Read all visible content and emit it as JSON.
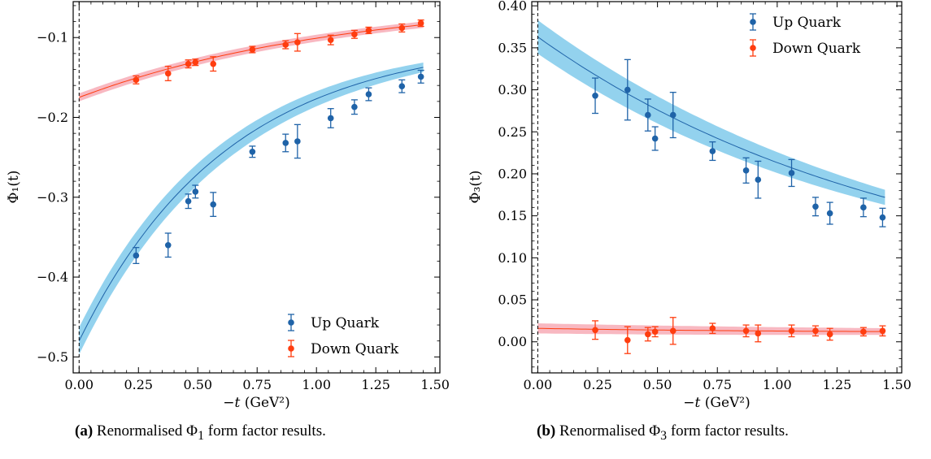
{
  "colors": {
    "up": "#1f63a8",
    "up_band": "#87cdec",
    "down": "#ff3d0f",
    "down_band": "#f7b0ba"
  },
  "chart_data": [
    {
      "type": "scatter",
      "xlabel_var": "−t",
      "xlabel_unit": "(GeV²)",
      "ylabel_sym": "Φ₁(t)",
      "xlim": [
        -0.025,
        1.52
      ],
      "ylim": [
        -0.52,
        -0.055
      ],
      "xticks": [
        0.0,
        0.25,
        0.5,
        0.75,
        1.0,
        1.25,
        1.5
      ],
      "xtick_labels": [
        "0.00",
        "0.25",
        "0.50",
        "0.75",
        "1.00",
        "1.25",
        "1.50"
      ],
      "yticks": [
        -0.1,
        -0.2,
        -0.3,
        -0.4,
        -0.5
      ],
      "ytick_labels": [
        "−0.1",
        "−0.2",
        "−0.3",
        "−0.4",
        "−0.5"
      ],
      "vline_x": 0,
      "legend_position": "lower right",
      "series": [
        {
          "name": "Up Quark",
          "color_key": "up",
          "x": [
            0.24,
            0.375,
            0.46,
            0.49,
            0.565,
            0.73,
            0.87,
            0.92,
            1.06,
            1.16,
            1.22,
            1.36,
            1.44
          ],
          "y": [
            -0.373,
            -0.36,
            -0.305,
            -0.293,
            -0.309,
            -0.243,
            -0.232,
            -0.23,
            -0.201,
            -0.187,
            -0.171,
            -0.161,
            -0.149
          ],
          "yerr": [
            0.01,
            0.015,
            0.009,
            0.008,
            0.015,
            0.007,
            0.011,
            0.021,
            0.012,
            0.009,
            0.008,
            0.008,
            0.008
          ],
          "fit": {
            "a": -0.48,
            "b": -0.1,
            "k": 1.6
          },
          "band_width": [
            0.017,
            0.006
          ]
        },
        {
          "name": "Down Quark",
          "color_key": "down",
          "x": [
            0.24,
            0.375,
            0.46,
            0.49,
            0.565,
            0.73,
            0.87,
            0.92,
            1.06,
            1.16,
            1.22,
            1.36,
            1.44
          ],
          "y": [
            -0.153,
            -0.145,
            -0.133,
            -0.131,
            -0.133,
            -0.115,
            -0.109,
            -0.106,
            -0.103,
            -0.096,
            -0.091,
            -0.088,
            -0.082
          ],
          "yerr": [
            0.005,
            0.009,
            0.005,
            0.004,
            0.009,
            0.004,
            0.005,
            0.011,
            0.006,
            0.005,
            0.004,
            0.005,
            0.004
          ],
          "fit": {
            "a": -0.175,
            "b": -0.05,
            "k": 0.9
          },
          "band_width": [
            0.005,
            0.004
          ]
        }
      ]
    },
    {
      "type": "scatter",
      "xlabel_var": "−t",
      "xlabel_unit": "(GeV²)",
      "ylabel_sym": "Φ₃(t)",
      "xlim": [
        -0.025,
        1.52
      ],
      "ylim": [
        -0.037,
        0.405
      ],
      "xticks": [
        0.0,
        0.25,
        0.5,
        0.75,
        1.0,
        1.25,
        1.5
      ],
      "xtick_labels": [
        "0.00",
        "0.25",
        "0.50",
        "0.75",
        "1.00",
        "1.25",
        "1.50"
      ],
      "yticks": [
        0.0,
        0.05,
        0.1,
        0.15,
        0.2,
        0.25,
        0.3,
        0.35,
        0.4
      ],
      "ytick_labels": [
        "0.00",
        "0.05",
        "0.10",
        "0.15",
        "0.20",
        "0.25",
        "0.30",
        "0.35",
        "0.40"
      ],
      "vline_x": 0,
      "legend_position": "upper right",
      "series": [
        {
          "name": "Up Quark",
          "color_key": "up",
          "x": [
            0.24,
            0.375,
            0.46,
            0.49,
            0.565,
            0.73,
            0.87,
            0.92,
            1.06,
            1.16,
            1.22,
            1.36,
            1.44
          ],
          "y": [
            0.293,
            0.3,
            0.27,
            0.242,
            0.27,
            0.227,
            0.204,
            0.193,
            0.201,
            0.161,
            0.153,
            0.16,
            0.148
          ],
          "yerr": [
            0.021,
            0.036,
            0.019,
            0.014,
            0.027,
            0.011,
            0.015,
            0.022,
            0.016,
            0.011,
            0.013,
            0.011,
            0.011
          ],
          "fit": {
            "a": 0.363,
            "b": 0.05,
            "k": 0.65
          },
          "band_width": [
            0.02,
            0.009
          ]
        },
        {
          "name": "Down Quark",
          "color_key": "down",
          "x": [
            0.24,
            0.375,
            0.46,
            0.49,
            0.565,
            0.73,
            0.87,
            0.92,
            1.06,
            1.16,
            1.22,
            1.36,
            1.44
          ],
          "y": [
            0.014,
            0.002,
            0.009,
            0.012,
            0.013,
            0.016,
            0.013,
            0.01,
            0.013,
            0.013,
            0.009,
            0.012,
            0.013
          ],
          "yerr": [
            0.011,
            0.016,
            0.008,
            0.006,
            0.016,
            0.006,
            0.007,
            0.01,
            0.007,
            0.006,
            0.007,
            0.005,
            0.006
          ],
          "fit": {
            "a": 0.016,
            "b": 0.011,
            "k": 1.0
          },
          "band_width": [
            0.006,
            0.004
          ]
        }
      ]
    }
  ],
  "captions": [
    {
      "label": "(a)",
      "text_pre": " Renormalised Φ",
      "sub": "1",
      "text_post": " form factor results."
    },
    {
      "label": "(b)",
      "text_pre": " Renormalised Φ",
      "sub": "3",
      "text_post": " form factor results."
    }
  ]
}
